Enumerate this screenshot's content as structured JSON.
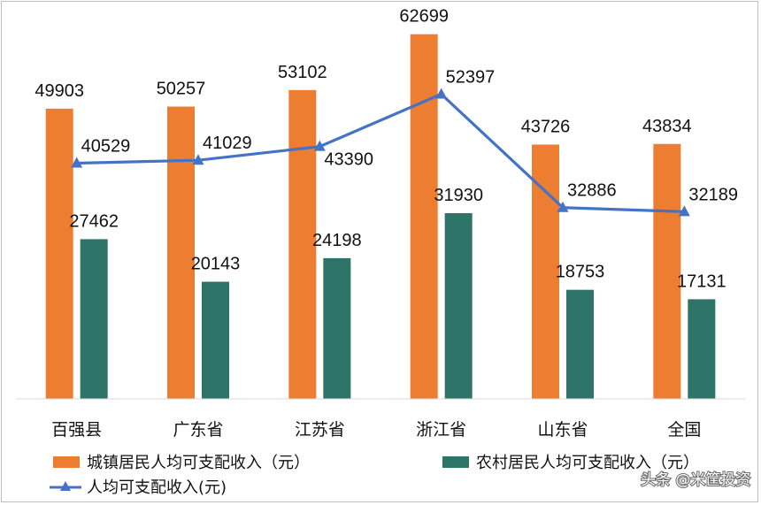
{
  "chart_data": {
    "type": "bar",
    "categories": [
      "百强县",
      "广东省",
      "江苏省",
      "浙江省",
      "山东省",
      "全国"
    ],
    "series": [
      {
        "name": "城镇居民人均可支配收入（元）",
        "kind": "bar",
        "color": "#ED7D31",
        "values": [
          49903,
          50257,
          53102,
          62699,
          43726,
          43834
        ]
      },
      {
        "name": "农村居民人均可支配收入（元）",
        "kind": "bar",
        "color": "#2E7468",
        "values": [
          27462,
          20143,
          24198,
          31930,
          18753,
          17131
        ]
      },
      {
        "name": "人均可支配收入(元)",
        "kind": "line",
        "marker": "triangle",
        "color": "#4472C4",
        "values": [
          40529,
          41029,
          43390,
          52397,
          32886,
          32189
        ]
      }
    ],
    "title": "",
    "xlabel": "",
    "ylabel": "",
    "ylim": [
      0,
      66000
    ],
    "legend_position": "bottom",
    "grid": false
  },
  "watermark": "头条 @米筐投资"
}
